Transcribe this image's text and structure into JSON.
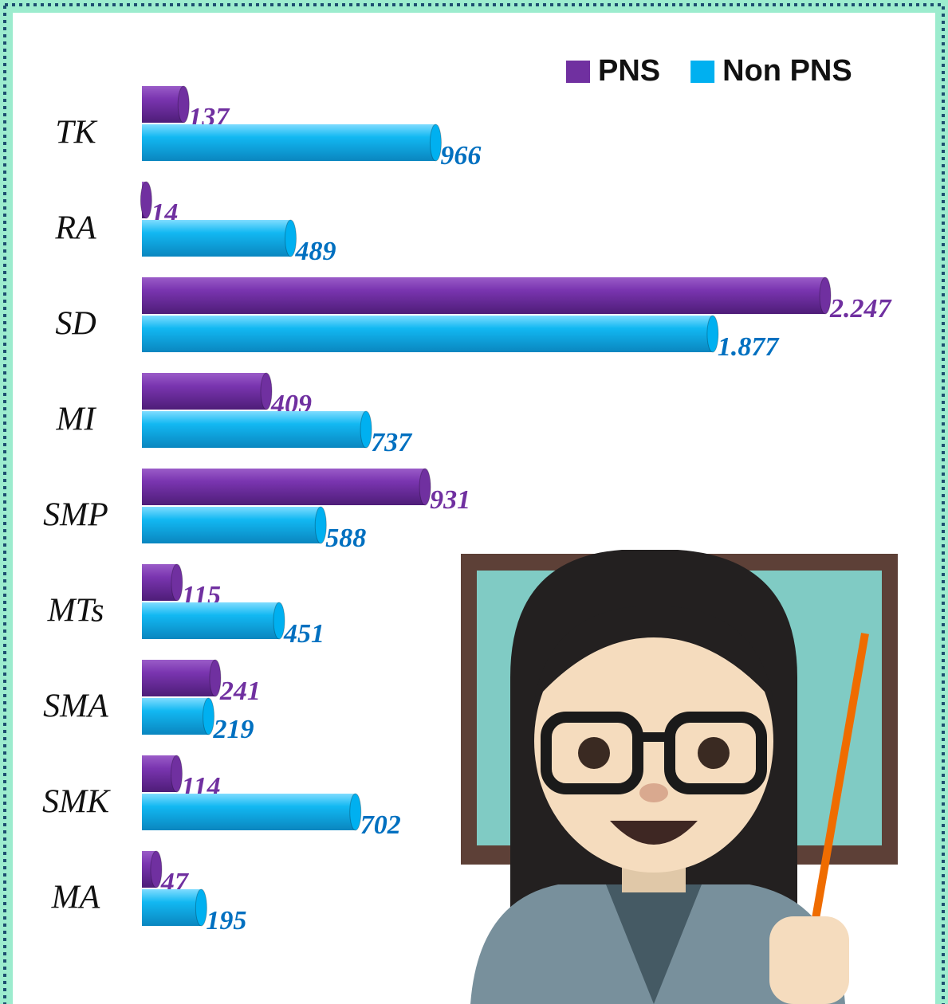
{
  "chart_data": {
    "type": "bar",
    "orientation": "horizontal",
    "categories": [
      "TK",
      "RA",
      "SD",
      "MI",
      "SMP",
      "MTs",
      "SMA",
      "SMK",
      "MA"
    ],
    "series": [
      {
        "name": "PNS",
        "color": "#7030a0",
        "label_color": "#7030a0",
        "values": [
          137,
          14,
          2247,
          409,
          931,
          115,
          241,
          114,
          47
        ],
        "value_labels": [
          "137",
          "14",
          "2.247",
          "409",
          "931",
          "115",
          "241",
          "114",
          "47"
        ]
      },
      {
        "name": "Non PNS",
        "color": "#00b0f0",
        "label_color": "#0070c0",
        "values": [
          966,
          489,
          1877,
          737,
          588,
          451,
          219,
          702,
          195
        ],
        "value_labels": [
          "966",
          "489",
          "1.877",
          "737",
          "588",
          "451",
          "219",
          "702",
          "195"
        ]
      }
    ],
    "legend": "top-right"
  }
}
